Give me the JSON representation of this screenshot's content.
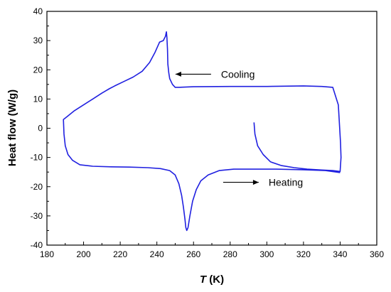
{
  "chart_data": {
    "type": "line",
    "xlabel_var": "T",
    "xlabel_unit": " (K)",
    "ylabel": "Heat flow (W/g)",
    "xlim": [
      180,
      360
    ],
    "ylim": [
      -40,
      40
    ],
    "xticks": [
      180,
      200,
      220,
      240,
      260,
      280,
      300,
      320,
      340,
      360
    ],
    "yticks": [
      -40,
      -30,
      -20,
      -10,
      0,
      10,
      20,
      30,
      40
    ],
    "grid": false,
    "line_color": "#2020e0",
    "series": [
      {
        "x": [
          293,
          293.5,
          295,
          298,
          302,
          308,
          315,
          322,
          330,
          336,
          339,
          340,
          340.5,
          340.2,
          339,
          336,
          330,
          320,
          300,
          280,
          260,
          252,
          250,
          248.5,
          247,
          246.5,
          246,
          245.8,
          245.5,
          245.2,
          245,
          244.7,
          244.3,
          243.5,
          241.5,
          239,
          236,
          232,
          227,
          222,
          217,
          214,
          210,
          205,
          200,
          195,
          191,
          189,
          189.3,
          190,
          191.5,
          194,
          198,
          205,
          215,
          225,
          235,
          242,
          247,
          250,
          252,
          253.5,
          254.5,
          255.3,
          255.8,
          256.3,
          257,
          258,
          259.5,
          261.5,
          264,
          268,
          274,
          282,
          292,
          305,
          320,
          332,
          338,
          340
        ],
        "y": [
          2,
          -2,
          -6,
          -9,
          -11.5,
          -12.8,
          -13.5,
          -14,
          -14.3,
          -14.5,
          -14.7,
          -14.8,
          -10,
          -5,
          8,
          14,
          14.3,
          14.5,
          14.3,
          14.3,
          14.2,
          14,
          14,
          15,
          17,
          19,
          22,
          27,
          31,
          33,
          32.5,
          31.5,
          31,
          30,
          29.5,
          26,
          22.5,
          19.5,
          17.5,
          16,
          14.5,
          13.5,
          12,
          10,
          8,
          6,
          4,
          3,
          -2,
          -6,
          -9,
          -11,
          -12.5,
          -13,
          -13.2,
          -13.3,
          -13.5,
          -13.8,
          -14.5,
          -16,
          -19,
          -23,
          -27,
          -31,
          -34,
          -35,
          -34,
          -30,
          -25,
          -21,
          -18,
          -16,
          -14.5,
          -14,
          -14,
          -14,
          -14.2,
          -14.5,
          -15,
          -15.2
        ]
      }
    ],
    "annotations": [
      {
        "text": "Cooling",
        "x": 275,
        "y": 18.5,
        "arrow": "left"
      },
      {
        "text": "Heating",
        "x": 301,
        "y": -18.5,
        "arrow": "right"
      }
    ]
  }
}
